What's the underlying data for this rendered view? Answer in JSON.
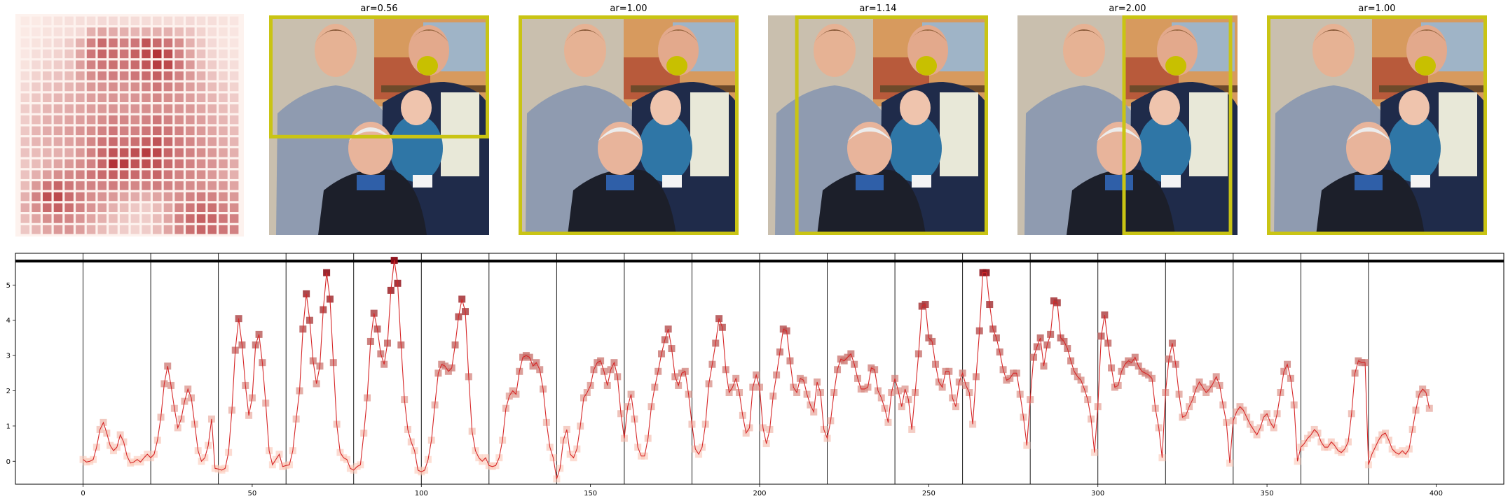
{
  "panels": [
    {
      "title": "ar=0.56",
      "aspect_ratio": 0.56
    },
    {
      "title": "ar=1.00",
      "aspect_ratio": 1.0
    },
    {
      "title": "ar=1.14",
      "aspect_ratio": 1.14
    },
    {
      "title": "ar=2.00",
      "aspect_ratio": 2.0
    },
    {
      "title": "ar=1.00",
      "aspect_ratio": 1.0
    }
  ],
  "colors": {
    "crop_box": "#c9c414",
    "marker_dot": "#c8c000",
    "line": "#d62728",
    "heat_low": "#fff5f0",
    "heat_high": "#a50f15",
    "separator": "#000000"
  },
  "heatmap": {
    "rows": 20,
    "cols": 20,
    "values": [
      [
        0.05,
        0.05,
        0.07,
        0.08,
        0.09,
        0.1,
        0.1,
        0.12,
        0.12,
        0.11,
        0.11,
        0.11,
        0.11,
        0.11,
        0.1,
        0.12,
        0.1,
        0.1,
        0.08,
        0.07
      ],
      [
        0.05,
        0.06,
        0.08,
        0.09,
        0.1,
        0.12,
        0.3,
        0.35,
        0.32,
        0.3,
        0.28,
        0.3,
        0.3,
        0.3,
        0.25,
        0.22,
        0.15,
        0.1,
        0.08,
        0.07
      ],
      [
        0.06,
        0.08,
        0.1,
        0.12,
        0.18,
        0.3,
        0.5,
        0.6,
        0.55,
        0.5,
        0.55,
        0.7,
        0.6,
        0.55,
        0.45,
        0.3,
        0.2,
        0.12,
        0.08,
        0.07
      ],
      [
        0.06,
        0.1,
        0.12,
        0.15,
        0.2,
        0.35,
        0.55,
        0.62,
        0.6,
        0.55,
        0.65,
        0.75,
        0.85,
        0.72,
        0.5,
        0.35,
        0.22,
        0.14,
        0.1,
        0.08
      ],
      [
        0.08,
        0.12,
        0.15,
        0.18,
        0.22,
        0.38,
        0.5,
        0.55,
        0.58,
        0.55,
        0.6,
        0.7,
        0.8,
        0.75,
        0.55,
        0.4,
        0.25,
        0.18,
        0.12,
        0.1
      ],
      [
        0.1,
        0.15,
        0.2,
        0.22,
        0.25,
        0.35,
        0.45,
        0.5,
        0.52,
        0.5,
        0.55,
        0.6,
        0.65,
        0.6,
        0.5,
        0.4,
        0.3,
        0.22,
        0.15,
        0.12
      ],
      [
        0.12,
        0.18,
        0.22,
        0.25,
        0.28,
        0.32,
        0.4,
        0.42,
        0.45,
        0.42,
        0.45,
        0.5,
        0.55,
        0.5,
        0.45,
        0.38,
        0.32,
        0.25,
        0.2,
        0.15
      ],
      [
        0.15,
        0.2,
        0.25,
        0.28,
        0.3,
        0.33,
        0.38,
        0.4,
        0.42,
        0.4,
        0.42,
        0.45,
        0.48,
        0.45,
        0.42,
        0.38,
        0.32,
        0.28,
        0.22,
        0.18
      ],
      [
        0.18,
        0.22,
        0.28,
        0.3,
        0.32,
        0.35,
        0.38,
        0.4,
        0.42,
        0.4,
        0.42,
        0.45,
        0.45,
        0.45,
        0.42,
        0.4,
        0.35,
        0.3,
        0.25,
        0.2
      ],
      [
        0.18,
        0.25,
        0.3,
        0.32,
        0.35,
        0.38,
        0.4,
        0.45,
        0.5,
        0.48,
        0.45,
        0.5,
        0.55,
        0.5,
        0.45,
        0.42,
        0.38,
        0.32,
        0.28,
        0.22
      ],
      [
        0.2,
        0.28,
        0.32,
        0.35,
        0.38,
        0.42,
        0.45,
        0.5,
        0.55,
        0.5,
        0.5,
        0.55,
        0.6,
        0.55,
        0.5,
        0.45,
        0.4,
        0.35,
        0.3,
        0.25
      ],
      [
        0.22,
        0.28,
        0.3,
        0.33,
        0.36,
        0.4,
        0.48,
        0.55,
        0.6,
        0.55,
        0.58,
        0.65,
        0.7,
        0.6,
        0.52,
        0.48,
        0.42,
        0.38,
        0.32,
        0.28
      ],
      [
        0.22,
        0.25,
        0.28,
        0.3,
        0.32,
        0.4,
        0.5,
        0.6,
        0.7,
        0.68,
        0.72,
        0.8,
        0.75,
        0.62,
        0.55,
        0.5,
        0.45,
        0.4,
        0.35,
        0.3
      ],
      [
        0.2,
        0.25,
        0.3,
        0.35,
        0.4,
        0.45,
        0.5,
        0.62,
        0.85,
        0.8,
        0.7,
        0.72,
        0.7,
        0.6,
        0.55,
        0.5,
        0.45,
        0.42,
        0.38,
        0.32
      ],
      [
        0.22,
        0.3,
        0.38,
        0.45,
        0.48,
        0.5,
        0.55,
        0.6,
        0.65,
        0.65,
        0.6,
        0.6,
        0.62,
        0.55,
        0.5,
        0.48,
        0.45,
        0.4,
        0.35,
        0.3
      ],
      [
        0.25,
        0.4,
        0.55,
        0.62,
        0.55,
        0.5,
        0.5,
        0.5,
        0.52,
        0.5,
        0.48,
        0.5,
        0.52,
        0.5,
        0.48,
        0.46,
        0.45,
        0.42,
        0.4,
        0.35
      ],
      [
        0.3,
        0.5,
        0.72,
        0.75,
        0.6,
        0.52,
        0.45,
        0.42,
        0.4,
        0.35,
        0.32,
        0.3,
        0.35,
        0.4,
        0.45,
        0.5,
        0.52,
        0.5,
        0.45,
        0.4
      ],
      [
        0.32,
        0.45,
        0.6,
        0.65,
        0.58,
        0.5,
        0.42,
        0.38,
        0.3,
        0.25,
        0.2,
        0.18,
        0.25,
        0.35,
        0.48,
        0.55,
        0.6,
        0.58,
        0.5,
        0.45
      ],
      [
        0.25,
        0.35,
        0.45,
        0.5,
        0.48,
        0.42,
        0.35,
        0.3,
        0.25,
        0.2,
        0.18,
        0.18,
        0.25,
        0.35,
        0.5,
        0.6,
        0.65,
        0.62,
        0.55,
        0.5
      ],
      [
        0.2,
        0.28,
        0.35,
        0.4,
        0.42,
        0.38,
        0.3,
        0.25,
        0.2,
        0.18,
        0.15,
        0.18,
        0.25,
        0.35,
        0.48,
        0.58,
        0.62,
        0.6,
        0.55,
        0.5
      ]
    ]
  },
  "chart_data": {
    "type": "line",
    "title": "",
    "xlabel": "",
    "ylabel": "",
    "xlim": [
      -20,
      420
    ],
    "ylim": [
      -0.65,
      5.9
    ],
    "x_ticks": [
      0,
      50,
      100,
      150,
      200,
      250,
      300,
      350,
      400
    ],
    "y_ticks": [
      0,
      1,
      2,
      3,
      4,
      5
    ],
    "segment_boundaries": [
      0,
      20,
      40,
      60,
      80,
      100,
      120,
      140,
      160,
      180,
      200,
      220,
      240,
      260,
      280,
      300,
      320,
      340,
      360,
      380
    ],
    "horizontal_line_y": 5.68,
    "grid": false,
    "legend": "none",
    "series": [
      {
        "x_start": 0,
        "x_step": 1,
        "values": [
          0.05,
          -0.02,
          0.0,
          0.05,
          0.4,
          0.9,
          1.1,
          0.8,
          0.45,
          0.3,
          0.4,
          0.75,
          0.55,
          0.15,
          -0.05,
          -0.02,
          0.05,
          -0.02,
          0.1,
          0.2,
          0.1,
          0.2,
          0.6,
          1.25,
          2.2,
          2.7,
          2.15,
          1.5,
          0.95,
          1.2,
          1.7,
          2.05,
          1.8,
          1.05,
          0.3,
          0.0,
          0.1,
          0.45,
          1.2,
          -0.2,
          -0.22,
          -0.25,
          -0.2,
          0.25,
          1.45,
          3.15,
          4.05,
          3.3,
          2.15,
          1.3,
          1.8,
          3.3,
          3.6,
          2.8,
          1.65,
          0.3,
          -0.1,
          0.05,
          0.2,
          -0.15,
          -0.12,
          -0.1,
          0.3,
          1.2,
          2.0,
          3.75,
          4.75,
          4.0,
          2.85,
          2.2,
          2.7,
          4.3,
          5.35,
          4.6,
          2.8,
          1.05,
          0.25,
          0.1,
          0.05,
          -0.2,
          -0.25,
          -0.15,
          -0.1,
          0.8,
          1.8,
          3.4,
          4.2,
          3.75,
          3.05,
          2.75,
          3.35,
          4.85,
          5.7,
          5.05,
          3.3,
          1.75,
          0.9,
          0.55,
          0.3,
          -0.25,
          -0.3,
          -0.25,
          0.05,
          0.6,
          1.6,
          2.5,
          2.75,
          2.7,
          2.55,
          2.65,
          3.3,
          4.1,
          4.6,
          4.25,
          2.4,
          0.85,
          0.3,
          0.1,
          0.0,
          0.1,
          -0.12,
          -0.15,
          -0.12,
          0.1,
          0.6,
          1.5,
          1.85,
          2.0,
          1.9,
          2.55,
          2.95,
          3.0,
          2.95,
          2.7,
          2.8,
          2.6,
          2.05,
          1.1,
          0.4,
          0.1,
          -0.5,
          -0.2,
          0.6,
          0.9,
          0.2,
          0.1,
          0.35,
          1.0,
          1.8,
          1.95,
          2.15,
          2.6,
          2.8,
          2.85,
          2.55,
          2.15,
          2.6,
          2.8,
          2.4,
          1.35,
          0.65,
          1.55,
          1.9,
          1.2,
          0.4,
          0.15,
          0.15,
          0.65,
          1.55,
          2.1,
          2.55,
          3.05,
          3.45,
          3.75,
          3.2,
          2.4,
          2.15,
          2.5,
          2.55,
          1.9,
          1.05,
          0.35,
          0.2,
          0.4,
          1.05,
          2.2,
          2.75,
          3.35,
          4.05,
          3.8,
          2.6,
          1.95,
          2.1,
          2.35,
          1.95,
          1.3,
          0.8,
          0.95,
          2.1,
          2.45,
          2.1,
          0.95,
          0.5,
          0.9,
          1.85,
          2.45,
          3.1,
          3.75,
          3.7,
          2.85,
          2.1,
          1.95,
          2.35,
          2.3,
          1.9,
          1.6,
          1.4,
          2.25,
          1.95,
          0.9,
          0.65,
          1.15,
          1.95,
          2.6,
          2.9,
          2.85,
          2.95,
          3.05,
          2.75,
          2.35,
          2.05,
          2.05,
          2.1,
          2.65,
          2.6,
          2.0,
          1.8,
          1.5,
          1.1,
          1.95,
          2.35,
          2.0,
          1.55,
          2.05,
          1.75,
          0.9,
          1.95,
          3.05,
          4.4,
          4.45,
          3.5,
          3.4,
          2.75,
          2.25,
          2.1,
          2.55,
          2.55,
          1.8,
          1.55,
          2.25,
          2.5,
          2.15,
          1.95,
          1.05,
          2.4,
          3.7,
          5.35,
          5.35,
          4.45,
          3.75,
          3.5,
          3.1,
          2.6,
          2.3,
          2.35,
          2.5,
          2.5,
          1.9,
          1.25,
          0.45,
          1.75,
          2.95,
          3.25,
          3.5,
          2.7,
          3.3,
          3.6,
          4.55,
          4.5,
          3.5,
          3.4,
          3.2,
          2.85,
          2.55,
          2.4,
          2.3,
          2.05,
          1.75,
          1.2,
          0.25,
          1.55,
          3.55,
          4.15,
          3.35,
          2.65,
          2.1,
          2.15,
          2.55,
          2.75,
          2.85,
          2.8,
          2.95,
          2.7,
          2.55,
          2.5,
          2.45,
          2.35,
          1.5,
          0.95,
          0.1,
          1.95,
          2.9,
          3.35,
          2.75,
          1.9,
          1.25,
          1.3,
          1.55,
          1.75,
          2.05,
          2.25,
          2.1,
          1.95,
          2.05,
          2.2,
          2.4,
          2.15,
          1.6,
          1.1,
          -0.05,
          1.15,
          1.4,
          1.55,
          1.45,
          1.25,
          1.05,
          0.9,
          0.75,
          0.95,
          1.25,
          1.35,
          1.1,
          0.95,
          1.35,
          1.95,
          2.55,
          2.75,
          2.35,
          1.6,
          0.0,
          0.4,
          0.5,
          0.65,
          0.75,
          0.9,
          0.8,
          0.55,
          0.4,
          0.4,
          0.55,
          0.45,
          0.3,
          0.25,
          0.35,
          0.55,
          1.35,
          2.5,
          2.85,
          2.8,
          2.8,
          -0.1,
          0.2,
          0.4,
          0.6,
          0.75,
          0.8,
          0.6,
          0.35,
          0.25,
          0.2,
          0.3,
          0.2,
          0.35,
          0.9,
          1.45,
          1.9,
          2.05,
          1.95,
          1.5
        ]
      }
    ]
  }
}
